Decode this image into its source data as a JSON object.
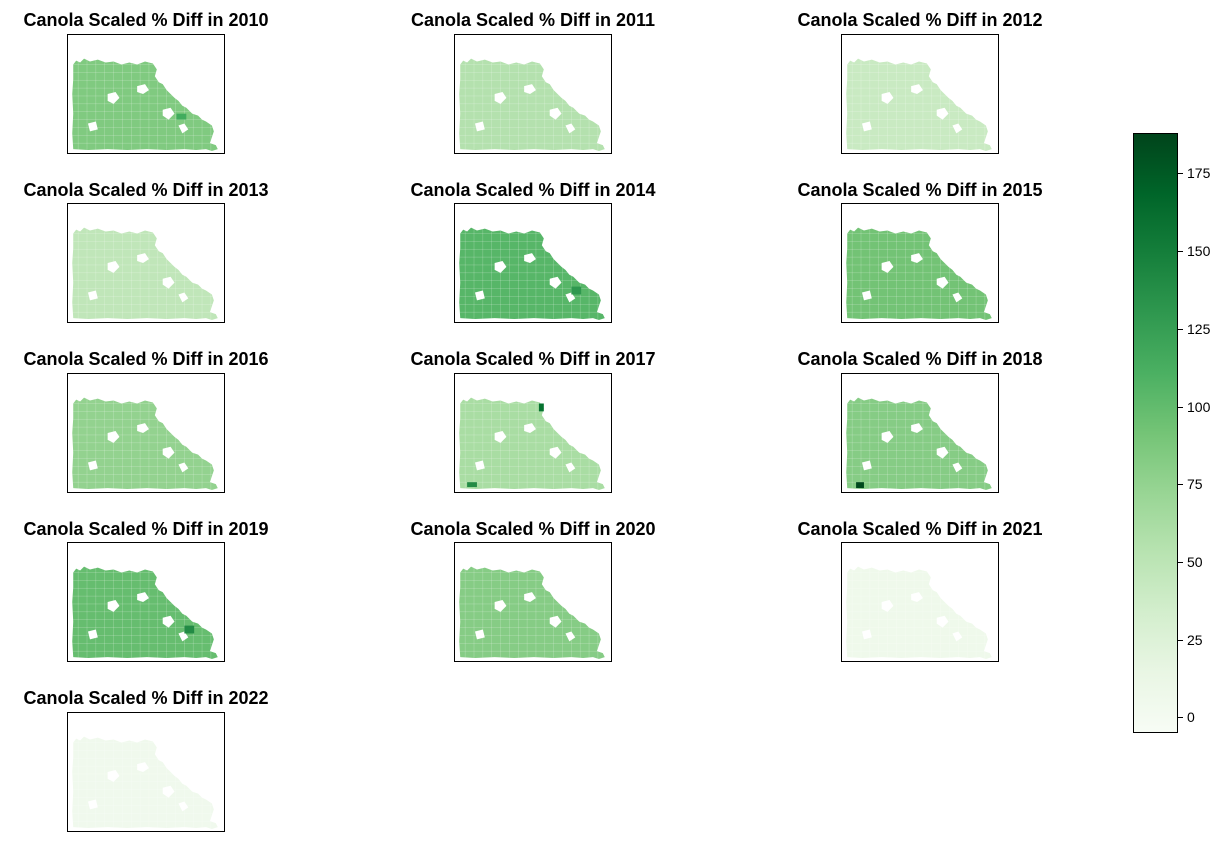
{
  "panels": [
    {
      "title": "Canola Scaled % Diff in 2010",
      "year": 2010,
      "base_value": 85,
      "hotspots": [
        {
          "value": 115
        }
      ]
    },
    {
      "title": "Canola Scaled % Diff in 2011",
      "year": 2011,
      "base_value": 55,
      "hotspots": []
    },
    {
      "title": "Canola Scaled % Diff in 2012",
      "year": 2012,
      "base_value": 42,
      "hotspots": []
    },
    {
      "title": "Canola Scaled % Diff in 2013",
      "year": 2013,
      "base_value": 48,
      "hotspots": []
    },
    {
      "title": "Canola Scaled % Diff in 2014",
      "year": 2014,
      "base_value": 105,
      "hotspots": [
        {
          "value": 130
        }
      ]
    },
    {
      "title": "Canola Scaled % Diff in 2015",
      "year": 2015,
      "base_value": 92,
      "hotspots": []
    },
    {
      "title": "Canola Scaled % Diff in 2016",
      "year": 2016,
      "base_value": 75,
      "hotspots": []
    },
    {
      "title": "Canola Scaled % Diff in 2017",
      "year": 2017,
      "base_value": 62,
      "hotspots": [
        {
          "value": 160
        },
        {
          "value": 140
        }
      ]
    },
    {
      "title": "Canola Scaled % Diff in 2018",
      "year": 2018,
      "base_value": 82,
      "hotspots": [
        {
          "value": 185
        }
      ]
    },
    {
      "title": "Canola Scaled % Diff in 2019",
      "year": 2019,
      "base_value": 98,
      "hotspots": [
        {
          "value": 140
        }
      ]
    },
    {
      "title": "Canola Scaled % Diff in 2020",
      "year": 2020,
      "base_value": 82,
      "hotspots": []
    },
    {
      "title": "Canola Scaled % Diff in 2021",
      "year": 2021,
      "base_value": 6,
      "hotspots": []
    },
    {
      "title": "Canola Scaled % Diff in 2022",
      "year": 2022,
      "base_value": 4,
      "hotspots": []
    }
  ],
  "colorbar": {
    "colormap": "Greens",
    "vmin": -5,
    "vmax": 188,
    "ticks": [
      0,
      25,
      50,
      75,
      100,
      125,
      150,
      175
    ],
    "tick_labels": [
      "0",
      "25",
      "50",
      "75",
      "100",
      "125",
      "150",
      "175"
    ],
    "colors": {
      "low": "#f7fcf5",
      "mid": "#74c476",
      "high": "#00441b"
    }
  }
}
